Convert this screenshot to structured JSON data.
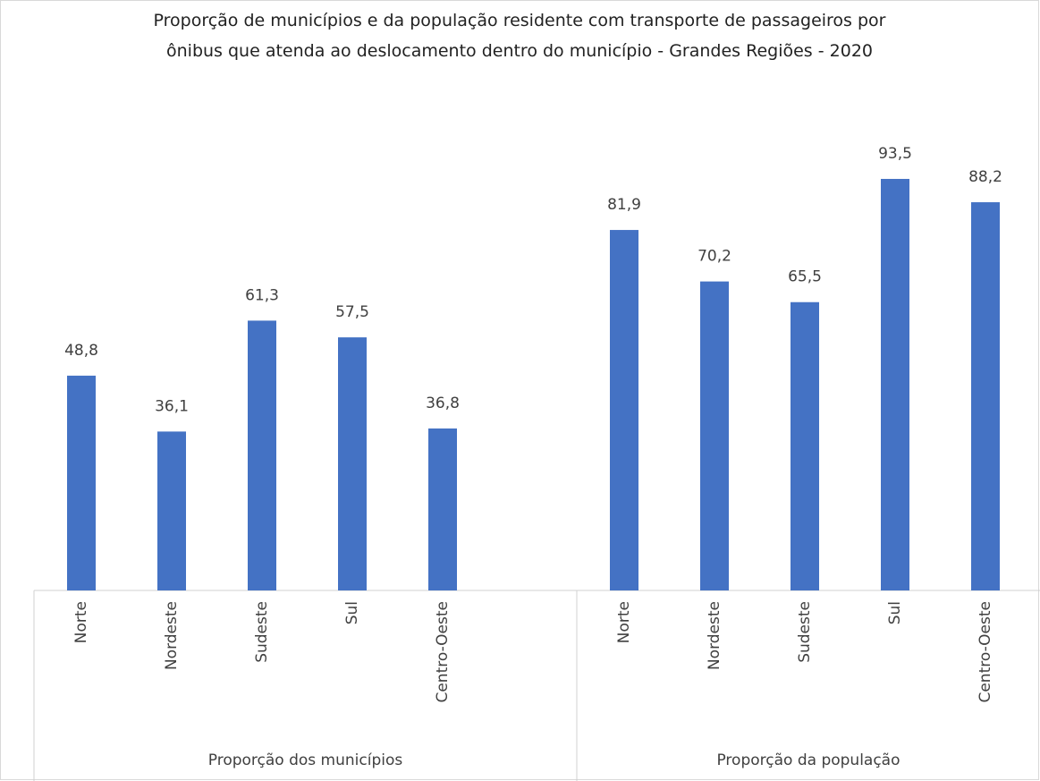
{
  "chart_data": {
    "type": "bar",
    "title": "Proporção de municípios e da população residente com transporte de passageiros por ônibus que atenda ao deslocamento dentro do município - Grandes Regiões - 2020",
    "color": "#4472c4",
    "groups": [
      {
        "name": "Proporção dos municípios",
        "categories": [
          "Norte",
          "Nordeste",
          "Sudeste",
          "Sul",
          "Centro-Oeste"
        ],
        "values": [
          48.8,
          36.1,
          61.3,
          57.5,
          36.8
        ],
        "value_labels": [
          "48,8",
          "36,1",
          "61,3",
          "57,5",
          "36,8"
        ]
      },
      {
        "name": "Proporção da população",
        "categories": [
          "Norte",
          "Nordeste",
          "Sudeste",
          "Sul",
          "Centro-Oeste"
        ],
        "values": [
          81.9,
          70.2,
          65.5,
          93.5,
          88.2
        ],
        "value_labels": [
          "81,9",
          "70,2",
          "65,5",
          "93,5",
          "88,2"
        ]
      }
    ]
  }
}
